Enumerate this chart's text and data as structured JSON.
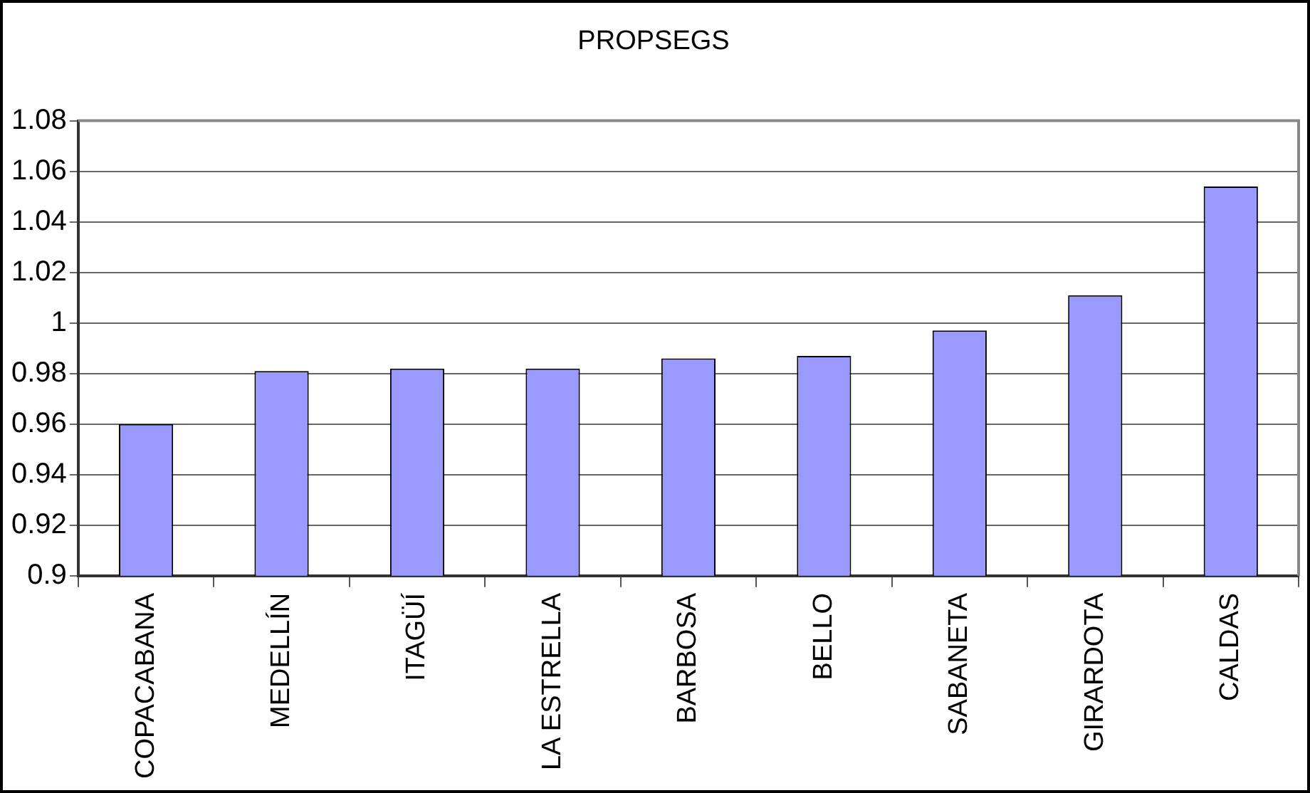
{
  "chart_data": {
    "type": "bar",
    "title": "PROPSEGS",
    "categories": [
      "COPACABANA",
      "MEDELLÍN",
      "ITAGÜÍ",
      "LA ESTRELLA",
      "BARBOSA",
      "BELLO",
      "SABANETA",
      "GIRARDOTA",
      "CALDAS"
    ],
    "values": [
      0.96,
      0.981,
      0.982,
      0.982,
      0.986,
      0.987,
      0.997,
      1.011,
      1.054
    ],
    "color": "#9999ff",
    "ylim": [
      0.9,
      1.08
    ],
    "yticks": [
      0.9,
      0.92,
      0.94,
      0.96,
      0.98,
      1,
      1.02,
      1.04,
      1.06,
      1.08
    ],
    "grid": "y",
    "legend": false
  }
}
